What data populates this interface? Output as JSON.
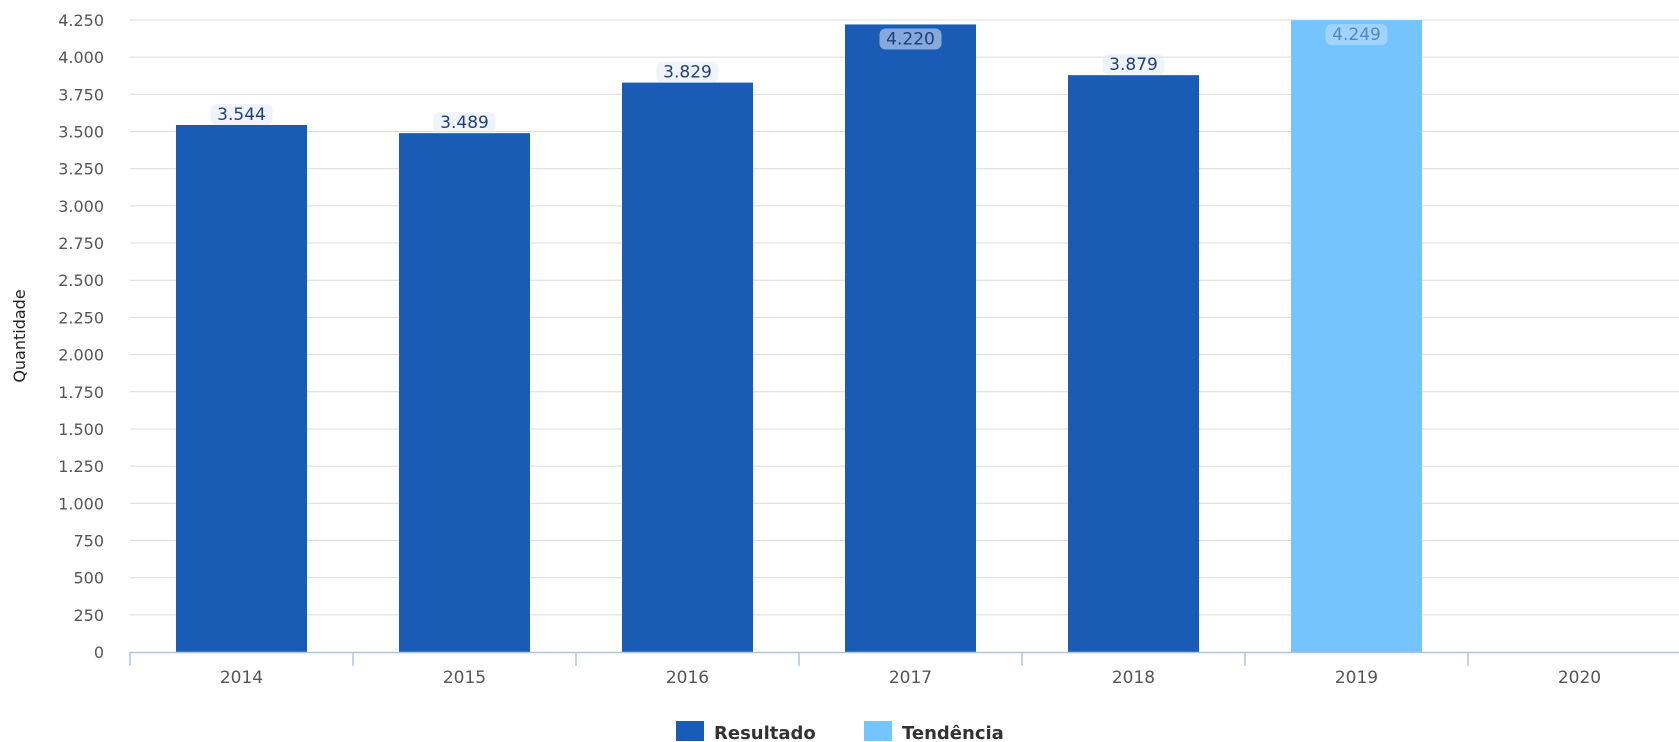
{
  "chart_data": {
    "type": "bar",
    "categories": [
      "2014",
      "2015",
      "2016",
      "2017",
      "2018",
      "2019",
      "2020"
    ],
    "series": [
      {
        "name": "Resultado",
        "color": "#1a5bb5",
        "values": [
          3544,
          3489,
          3829,
          4220,
          3879,
          null,
          null
        ],
        "labels": [
          "3.544",
          "3.489",
          "3.829",
          "4.220",
          "3.879",
          null,
          null
        ]
      },
      {
        "name": "Tendência",
        "color": "#76c4ff",
        "values": [
          null,
          null,
          null,
          null,
          null,
          4249,
          null
        ],
        "labels": [
          null,
          null,
          null,
          null,
          null,
          "4.249",
          null
        ]
      }
    ],
    "ylabel": "Quantidade",
    "ylim": [
      0,
      4250
    ],
    "yticks": [
      {
        "value": 0,
        "label": "0"
      },
      {
        "value": 250,
        "label": "250"
      },
      {
        "value": 500,
        "label": "500"
      },
      {
        "value": 750,
        "label": "750"
      },
      {
        "value": 1000,
        "label": "1.000"
      },
      {
        "value": 1250,
        "label": "1.250"
      },
      {
        "value": 1500,
        "label": "1.500"
      },
      {
        "value": 1750,
        "label": "1.750"
      },
      {
        "value": 2000,
        "label": "2.000"
      },
      {
        "value": 2250,
        "label": "2.250"
      },
      {
        "value": 2500,
        "label": "2.500"
      },
      {
        "value": 2750,
        "label": "2.750"
      },
      {
        "value": 3000,
        "label": "3.000"
      },
      {
        "value": 3250,
        "label": "3.250"
      },
      {
        "value": 3500,
        "label": "3.500"
      },
      {
        "value": 3750,
        "label": "3.750"
      },
      {
        "value": 4000,
        "label": "4.000"
      },
      {
        "value": 4250,
        "label": "4.250"
      }
    ],
    "grid": true,
    "legend_position": "bottom-center"
  }
}
